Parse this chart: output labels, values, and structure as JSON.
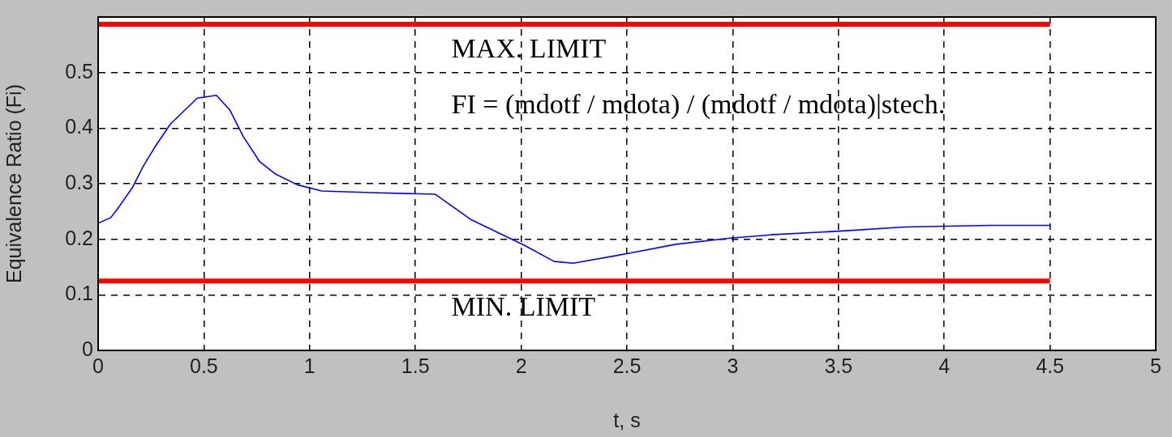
{
  "chart_data": {
    "type": "line",
    "xlabel": "t, s",
    "ylabel": "Equivalence Ratio (Fi)",
    "xlim": [
      0,
      5
    ],
    "xticks": [
      0,
      0.5,
      1,
      1.5,
      2,
      2.5,
      3,
      3.5,
      4,
      4.5,
      5
    ],
    "ylim": [
      0,
      0.6
    ],
    "yticks": [
      0,
      0.1,
      0.2,
      0.3,
      0.4,
      0.5
    ],
    "grid": true,
    "legend": false,
    "line_style": "solid",
    "marker": "none",
    "series": [
      {
        "color": "#0000ff",
        "x": [
          0,
          0.06,
          0.098,
          0.162,
          0.213,
          0.265,
          0.341,
          0.392,
          0.469,
          0.559,
          0.622,
          0.686,
          0.763,
          0.84,
          0.942,
          1.057,
          1.287,
          1.594,
          1.76,
          2.016,
          2.156,
          2.246,
          2.514,
          2.731,
          2.987,
          3.179,
          3.52,
          3.813,
          4.213,
          4.5
        ],
        "values": [
          0.229,
          0.239,
          0.258,
          0.293,
          0.331,
          0.364,
          0.407,
          0.426,
          0.454,
          0.459,
          0.433,
          0.385,
          0.34,
          0.317,
          0.298,
          0.287,
          0.284,
          0.281,
          0.236,
          0.189,
          0.16,
          0.157,
          0.175,
          0.191,
          0.202,
          0.208,
          0.215,
          0.222,
          0.225,
          0.225
        ]
      },
      {
        "color": "#ff0000",
        "x": [
          0,
          4.5
        ],
        "values": [
          0.587,
          0.587
        ]
      },
      {
        "color": "#ff0000",
        "x": [
          0,
          4.5
        ],
        "values": [
          0.125,
          0.125
        ]
      }
    ],
    "annotations": [
      "MAX. LIMIT",
      "FI = (mdotf / mdota) / (mdotf / mdota)|stech.",
      "MIN. LIMIT"
    ]
  }
}
